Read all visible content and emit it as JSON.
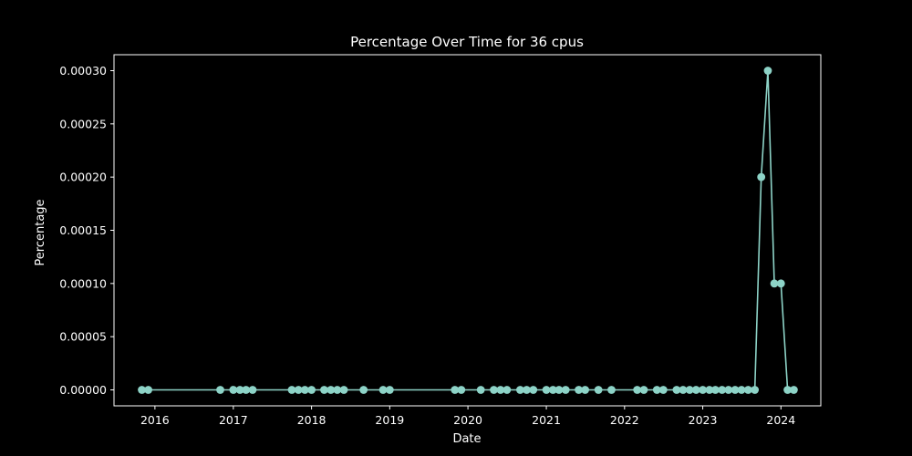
{
  "chart_data": {
    "type": "line",
    "title": "Percentage Over Time for 36 cpus",
    "xlabel": "Date",
    "ylabel": "Percentage",
    "x_ticks": [
      "2016",
      "2017",
      "2018",
      "2019",
      "2020",
      "2021",
      "2022",
      "2023",
      "2024"
    ],
    "y_ticks": [
      "0.00000",
      "0.00005",
      "0.00010",
      "0.00015",
      "0.00020",
      "0.00025",
      "0.00030"
    ],
    "xlim": [
      "2015-06-24",
      "2024-07-05"
    ],
    "ylim": [
      -1.5e-05,
      0.000315
    ],
    "grid": false,
    "colors": {
      "background": "#000000",
      "line": "#8dd3c7",
      "axes": "#ffffff"
    },
    "series": [
      {
        "points": [
          [
            "2015-11-01",
            0
          ],
          [
            "2015-12-01",
            0
          ],
          [
            "2016-11-01",
            0
          ],
          [
            "2017-01-01",
            0
          ],
          [
            "2017-02-01",
            0
          ],
          [
            "2017-03-01",
            0
          ],
          [
            "2017-04-01",
            0
          ],
          [
            "2017-10-01",
            0
          ],
          [
            "2017-11-01",
            0
          ],
          [
            "2017-12-01",
            0
          ],
          [
            "2018-01-01",
            0
          ],
          [
            "2018-03-01",
            0
          ],
          [
            "2018-04-01",
            0
          ],
          [
            "2018-05-01",
            0
          ],
          [
            "2018-06-01",
            0
          ],
          [
            "2018-09-01",
            0
          ],
          [
            "2018-12-01",
            0
          ],
          [
            "2019-01-01",
            0
          ],
          [
            "2019-11-01",
            0
          ],
          [
            "2019-12-01",
            0
          ],
          [
            "2020-03-01",
            0
          ],
          [
            "2020-05-01",
            0
          ],
          [
            "2020-06-01",
            0
          ],
          [
            "2020-07-01",
            0
          ],
          [
            "2020-09-01",
            0
          ],
          [
            "2020-10-01",
            0
          ],
          [
            "2020-11-01",
            0
          ],
          [
            "2021-01-01",
            0
          ],
          [
            "2021-02-01",
            0
          ],
          [
            "2021-03-01",
            0
          ],
          [
            "2021-04-01",
            0
          ],
          [
            "2021-06-01",
            0
          ],
          [
            "2021-07-01",
            0
          ],
          [
            "2021-09-01",
            0
          ],
          [
            "2021-11-01",
            0
          ],
          [
            "2022-03-01",
            0
          ],
          [
            "2022-04-01",
            0
          ],
          [
            "2022-06-01",
            0
          ],
          [
            "2022-07-01",
            0
          ],
          [
            "2022-09-01",
            0
          ],
          [
            "2022-10-01",
            0
          ],
          [
            "2022-11-01",
            0
          ],
          [
            "2022-12-01",
            0
          ],
          [
            "2023-01-01",
            0
          ],
          [
            "2023-02-01",
            0
          ],
          [
            "2023-03-01",
            0
          ],
          [
            "2023-04-01",
            0
          ],
          [
            "2023-05-01",
            0
          ],
          [
            "2023-06-01",
            0
          ],
          [
            "2023-07-01",
            0
          ],
          [
            "2023-08-01",
            0
          ],
          [
            "2023-09-01",
            0
          ],
          [
            "2023-10-01",
            0.0002
          ],
          [
            "2023-11-01",
            0.0003
          ],
          [
            "2023-12-01",
            0.0001
          ],
          [
            "2024-01-01",
            0.0001
          ],
          [
            "2024-02-01",
            0
          ],
          [
            "2024-03-01",
            0
          ]
        ]
      }
    ]
  }
}
